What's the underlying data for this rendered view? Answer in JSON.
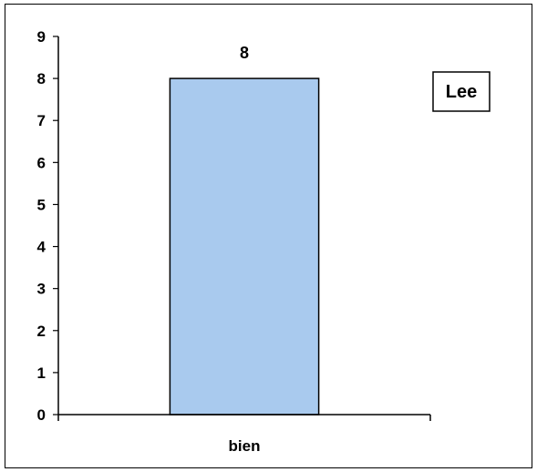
{
  "chart_data": {
    "type": "bar",
    "categories": [
      "bien"
    ],
    "series": [
      {
        "name": "Lee",
        "values": [
          8
        ]
      }
    ],
    "data_labels": [
      "8"
    ],
    "ylim": [
      0,
      9
    ],
    "y_ticks": [
      0,
      1,
      2,
      3,
      4,
      5,
      6,
      7,
      8,
      9
    ],
    "grid": false,
    "legend_position": "top-right",
    "title": "",
    "xlabel": "",
    "ylabel": "",
    "colors": {
      "bar_fill": "#A9CAEE",
      "bar_stroke": "#000000",
      "axis": "#000000"
    }
  }
}
